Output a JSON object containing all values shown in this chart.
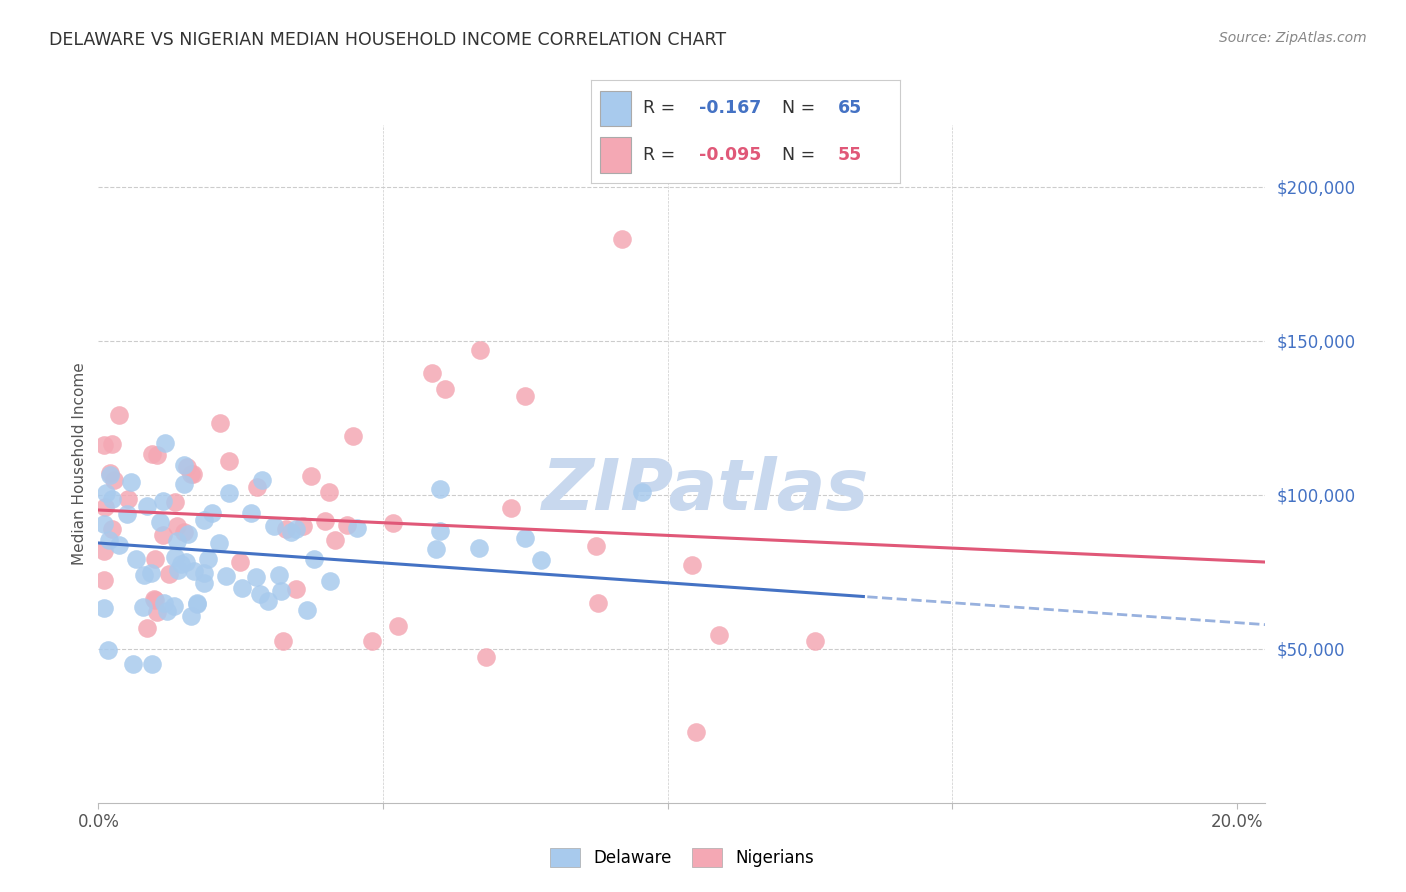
{
  "title": "DELAWARE VS NIGERIAN MEDIAN HOUSEHOLD INCOME CORRELATION CHART",
  "source": "Source: ZipAtlas.com",
  "ylabel": "Median Household Income",
  "ytick_labels": [
    "$50,000",
    "$100,000",
    "$150,000",
    "$200,000"
  ],
  "ytick_values": [
    50000,
    100000,
    150000,
    200000
  ],
  "ylim": [
    0,
    220000
  ],
  "xlim": [
    0.0,
    0.205
  ],
  "legend_blue_label2": "Delaware",
  "legend_pink_label2": "Nigerians",
  "blue_color": "#A8CAED",
  "pink_color": "#F4A8B4",
  "blue_line_color": "#4472C4",
  "pink_line_color": "#E05878",
  "background_color": "#FFFFFF",
  "blue_R": -0.167,
  "pink_R": -0.095,
  "blue_N": 65,
  "pink_N": 55,
  "watermark_color": "#C8D8EE",
  "grid_color": "#CCCCCC",
  "title_color": "#333333",
  "source_color": "#888888",
  "ytick_color": "#4472C4",
  "blue_legend_color": "#4472C4",
  "pink_legend_color": "#E05878"
}
